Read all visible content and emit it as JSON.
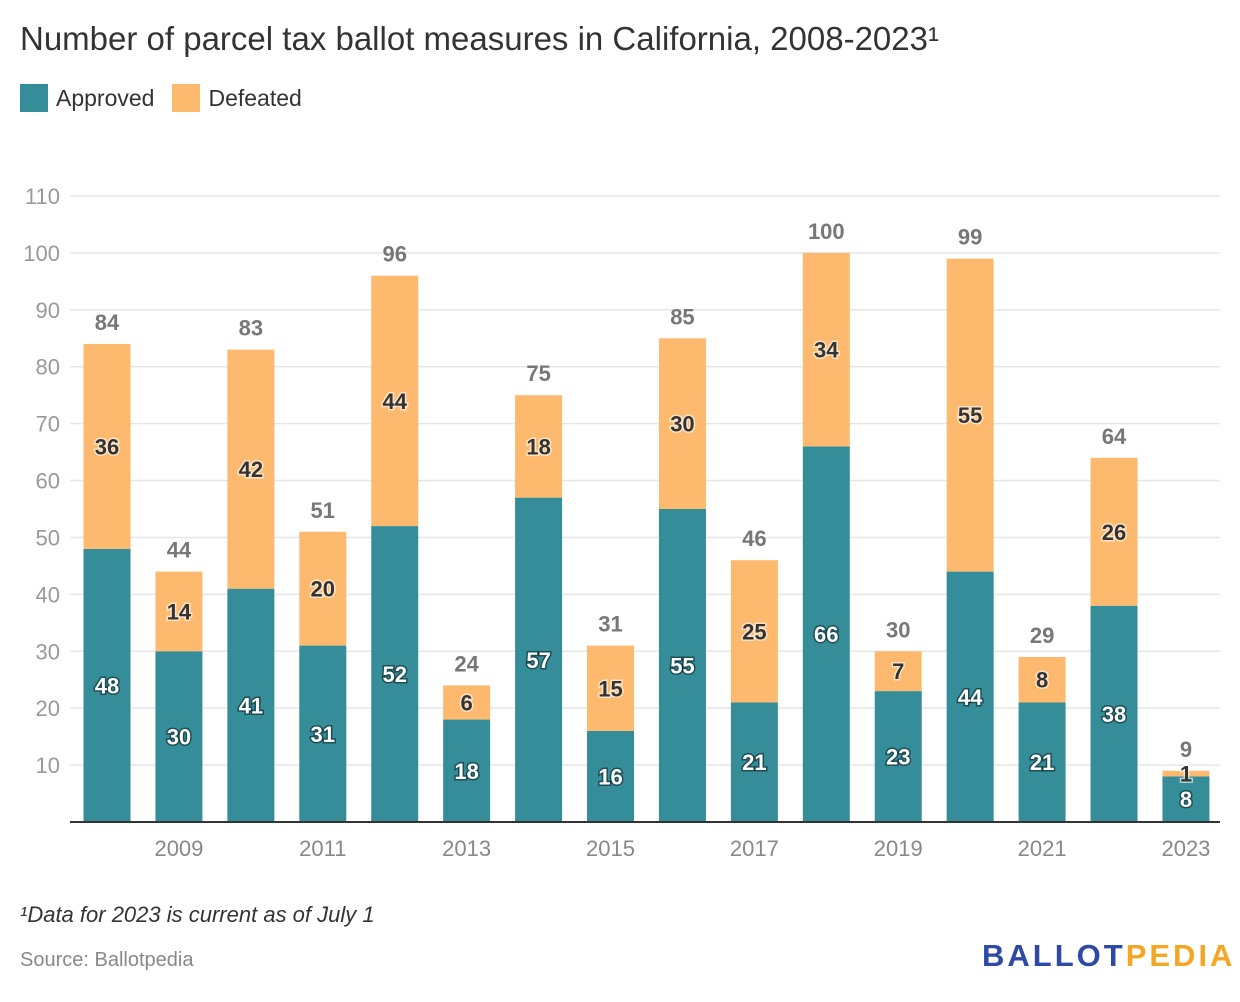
{
  "title": "Number of parcel tax ballot measures in California, 2008-2023¹",
  "footnote": "¹Data for 2023 is current as of July 1",
  "source": "Source: Ballotpedia",
  "logo": {
    "part1": "BALLOT",
    "part2": "PEDIA"
  },
  "colors": {
    "approved": "#358d99",
    "defeated": "#fdb96e"
  },
  "chart_data": {
    "type": "bar",
    "stacked": true,
    "title": "Number of parcel tax ballot measures in California, 2008-2023¹",
    "categories": [
      "2008",
      "2009",
      "2010",
      "2011",
      "2012",
      "2013",
      "2014",
      "2015",
      "2016",
      "2017",
      "2018",
      "2019",
      "2020",
      "2021",
      "2022",
      "2023"
    ],
    "x_tick_labels": [
      "2009",
      "2011",
      "2013",
      "2015",
      "2017",
      "2019",
      "2021",
      "2023"
    ],
    "y_ticks": [
      10,
      20,
      30,
      40,
      50,
      60,
      70,
      80,
      90,
      100,
      110
    ],
    "ylim": [
      0,
      110
    ],
    "grid": true,
    "legend": "top-left",
    "series": [
      {
        "name": "Approved",
        "values": [
          48,
          30,
          41,
          31,
          52,
          18,
          57,
          16,
          55,
          21,
          66,
          23,
          44,
          21,
          38,
          8
        ]
      },
      {
        "name": "Defeated",
        "values": [
          36,
          14,
          42,
          20,
          44,
          6,
          18,
          15,
          30,
          25,
          34,
          7,
          55,
          8,
          26,
          1
        ]
      }
    ],
    "totals": [
      84,
      44,
      83,
      51,
      96,
      24,
      75,
      31,
      85,
      46,
      100,
      30,
      99,
      29,
      64,
      9
    ]
  }
}
